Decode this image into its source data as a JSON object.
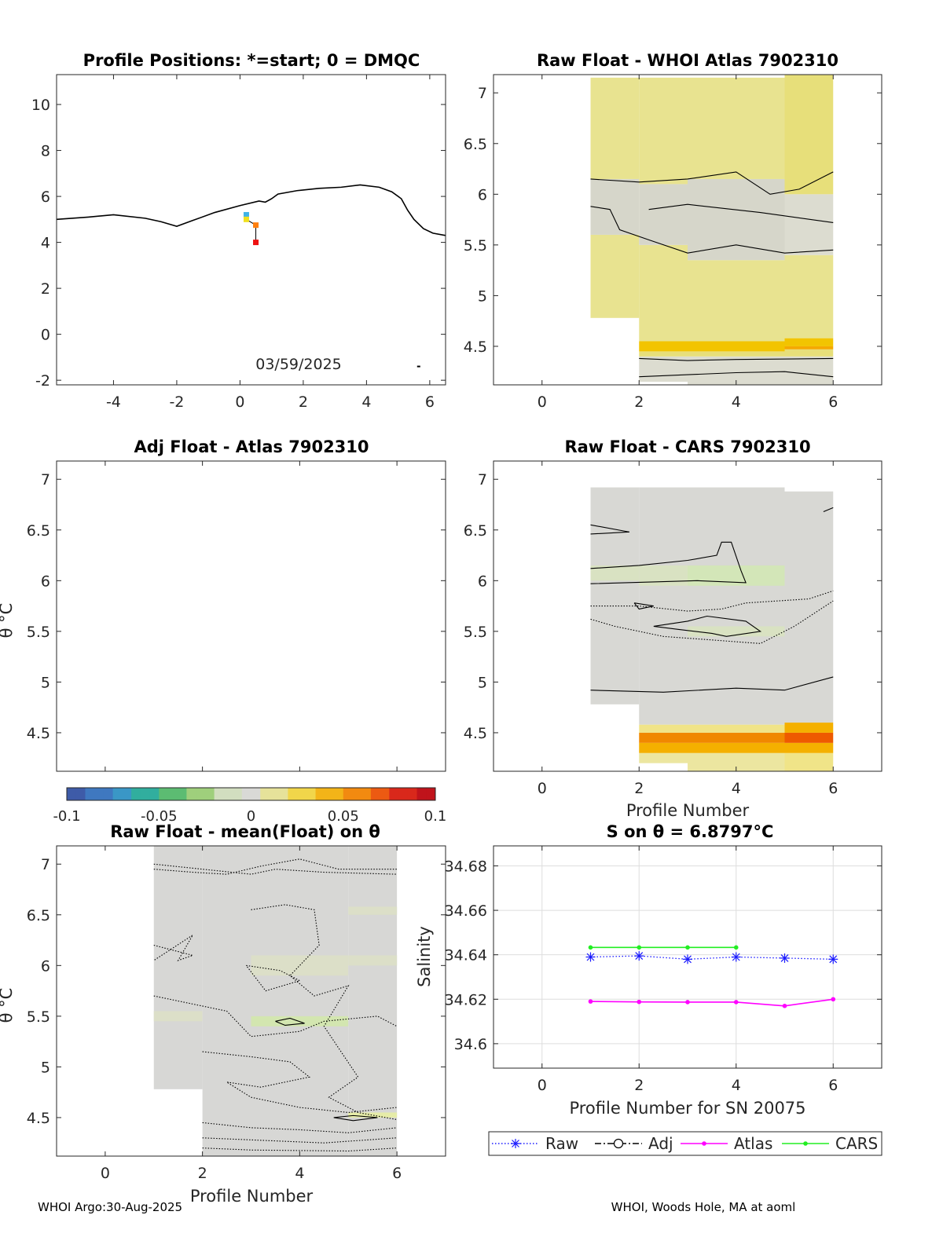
{
  "footer": {
    "left": "WHOI Argo:30-Aug-2025",
    "right": "WHOI, Woods Hole, MA at aoml"
  },
  "chart_data": [
    {
      "id": "positions",
      "type": "scatter",
      "title": "Profile Positions: *=start; 0 = DMQC",
      "annotation": "03/59/2025",
      "xlim": [
        -5.8,
        6.5
      ],
      "ylim": [
        -2.2,
        11.3
      ],
      "xticks": [
        -4,
        -2,
        0,
        2,
        4,
        6
      ],
      "yticks": [
        -2,
        0,
        2,
        4,
        6,
        8,
        10
      ],
      "points": [
        {
          "x": 0.2,
          "y": 5.2,
          "color": "#3fb3e8"
        },
        {
          "x": 0.2,
          "y": 5.0,
          "color": "#f0e020"
        },
        {
          "x": 0.5,
          "y": 4.75,
          "color": "#ff7f0e"
        },
        {
          "x": 0.5,
          "y": 4.0,
          "color": "#ee1111"
        }
      ]
    },
    {
      "id": "atlas",
      "type": "heatmap",
      "title": "Raw Float - WHOI Atlas  7902310",
      "xlim": [
        -1,
        7
      ],
      "ylim": [
        4.12,
        7.18
      ],
      "xticks": [
        0,
        2,
        4,
        6
      ],
      "yticks": [
        4.5,
        5,
        5.5,
        6,
        6.5,
        7
      ],
      "ytickLabels": [
        "4.5",
        "5",
        "5.5",
        "6",
        "6.5",
        "7"
      ]
    },
    {
      "id": "adj",
      "type": "heatmap",
      "title": "Adj Float - Atlas  7902310",
      "ylabel": "θ °C",
      "xlim": [
        -1,
        7
      ],
      "ylim": [
        4.12,
        7.18
      ],
      "yticks": [
        4.5,
        5,
        5.5,
        6,
        6.5,
        7
      ],
      "ytickLabels": [
        "4.5",
        "5",
        "5.5",
        "6",
        "6.5",
        "7"
      ]
    },
    {
      "id": "cars",
      "type": "heatmap",
      "title": "Raw Float - CARS  7902310",
      "xlabel": "Profile Number",
      "xlim": [
        -1,
        7
      ],
      "ylim": [
        4.12,
        7.18
      ],
      "xticks": [
        0,
        2,
        4,
        6
      ],
      "yticks": [
        4.5,
        5,
        5.5,
        6,
        6.5,
        7
      ],
      "ytickLabels": [
        "4.5",
        "5",
        "5.5",
        "6",
        "6.5",
        "7"
      ]
    },
    {
      "id": "colorbar",
      "type": "heatmap",
      "range": [
        -0.1,
        0.1
      ],
      "tickLabels": [
        "-0.1",
        "-0.05",
        "0",
        "0.05",
        "0.1"
      ]
    },
    {
      "id": "anom",
      "type": "heatmap",
      "title": "Raw Float - mean(Float) on θ",
      "xlabel": "Profile Number",
      "ylabel": "θ °C",
      "xlim": [
        -1,
        7
      ],
      "ylim": [
        4.12,
        7.18
      ],
      "xticks": [
        0,
        2,
        4,
        6
      ],
      "yticks": [
        4.5,
        5,
        5.5,
        6,
        6.5,
        7
      ],
      "ytickLabels": [
        "4.5",
        "5",
        "5.5",
        "6",
        "6.5",
        "7"
      ]
    },
    {
      "id": "salinity",
      "type": "line",
      "title": "S on θ = 6.8797°C",
      "xlabel": "Profile Number for SN 20075",
      "ylabel": "Salinity",
      "xlim": [
        -1,
        7
      ],
      "ylim": [
        34.589,
        34.689
      ],
      "xticks": [
        0,
        2,
        4,
        6
      ],
      "yticks": [
        34.6,
        34.62,
        34.64,
        34.66,
        34.68
      ],
      "ytickLabels": [
        "34.6",
        "34.62",
        "34.64",
        "34.66",
        "34.68"
      ],
      "grid": true,
      "legend": "bottom",
      "series": [
        {
          "name": "Raw",
          "color": "#1a1aff",
          "marker": "star",
          "dash": "dotted",
          "x": [
            1,
            2,
            3,
            4,
            5,
            6
          ],
          "values": [
            34.639,
            34.6395,
            34.638,
            34.639,
            34.6385,
            34.638
          ]
        },
        {
          "name": "Adj",
          "color": "#000000",
          "marker": "circle",
          "dash": "dashdot",
          "x": [],
          "values": []
        },
        {
          "name": "Atlas",
          "color": "#ff00ff",
          "marker": "dot",
          "dash": "solid",
          "x": [
            1,
            2,
            3,
            4,
            5,
            6
          ],
          "values": [
            34.619,
            34.6188,
            34.6187,
            34.6187,
            34.617,
            34.62
          ]
        },
        {
          "name": "CARS",
          "color": "#22ee22",
          "marker": "dot",
          "dash": "solid",
          "x": [
            1,
            2,
            3,
            4
          ],
          "values": [
            34.6433,
            34.6433,
            34.6433,
            34.6433
          ]
        }
      ]
    }
  ]
}
